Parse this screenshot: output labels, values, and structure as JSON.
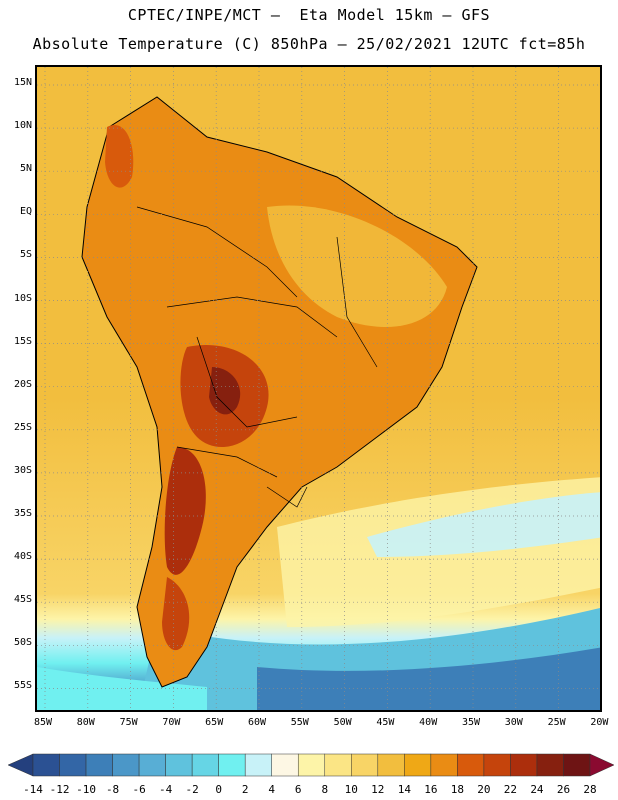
{
  "header": {
    "line1": "CPTEC/INPE/MCT –  Eta Model 15km – GFS",
    "line2": "Absolute Temperature (C) 850hPa – 25/02/2021 12UTC fct=85h"
  },
  "map": {
    "lat_labels": [
      "15N",
      "10N",
      "5N",
      "EQ",
      "5S",
      "10S",
      "15S",
      "20S",
      "25S",
      "30S",
      "35S",
      "40S",
      "45S",
      "50S",
      "55S"
    ],
    "lon_labels": [
      "85W",
      "80W",
      "75W",
      "70W",
      "65W",
      "60W",
      "55W",
      "50W",
      "45W",
      "40W",
      "35W",
      "30W",
      "25W",
      "20W"
    ],
    "grid": "dotted",
    "region": "South America"
  },
  "colorbar": {
    "labels": [
      "-14",
      "-12",
      "-10",
      "-8",
      "-6",
      "-4",
      "-2",
      "0",
      "2",
      "4",
      "6",
      "8",
      "10",
      "12",
      "14",
      "16",
      "18",
      "20",
      "22",
      "24",
      "26",
      "28"
    ],
    "colors": [
      "#24407e",
      "#2b5193",
      "#3366a6",
      "#3d7fb8",
      "#4b97c8",
      "#58aed5",
      "#5fc2dd",
      "#66d5e5",
      "#70f0f0",
      "#c8f2f8",
      "#fdf7e4",
      "#fdf4a8",
      "#fbe585",
      "#f8d466",
      "#f2be3e",
      "#efa816",
      "#ea8c14",
      "#d85a0c",
      "#c5440c",
      "#ac2e0c",
      "#86200f",
      "#6e1414",
      "#8a0a30"
    ]
  }
}
